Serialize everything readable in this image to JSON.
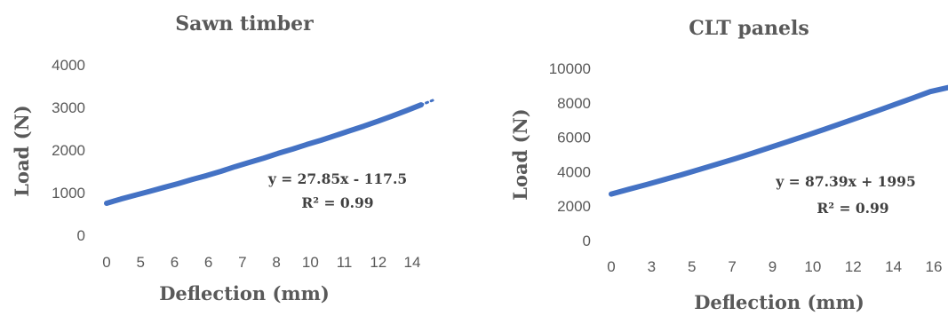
{
  "chart_data": [
    {
      "type": "line",
      "title": "Sawn timber",
      "xlabel": "Deflection (mm)",
      "ylabel": "Load (N)",
      "x_tick_labels": [
        "0",
        "5",
        "6",
        "6",
        "7",
        "8",
        "10",
        "11",
        "12",
        "14"
      ],
      "y_tick_labels": [
        "0",
        "1000",
        "2000",
        "3000",
        "4000"
      ],
      "ylim": [
        0,
        4000
      ],
      "series": [
        {
          "values": [
            750,
            850,
            940,
            1030,
            1120,
            1210,
            1310,
            1400,
            1500,
            1610,
            1710,
            1810,
            1920,
            2020,
            2130,
            2230,
            2340,
            2450,
            2560,
            2680,
            2800,
            2930,
            3060
          ]
        }
      ],
      "trendline": {
        "type": "linear",
        "extends_beyond_data": true,
        "end_value": 3190
      },
      "annotations": [
        "y = 27.85x - 117.5",
        "R² = 0.99"
      ],
      "colors": {
        "series": "#4472C4"
      }
    },
    {
      "type": "line",
      "title": "CLT panels",
      "xlabel": "Deflection (mm)",
      "ylabel": "Load (N)",
      "x_tick_labels": [
        "0",
        "3",
        "5",
        "7",
        "9",
        "10",
        "12",
        "14",
        "16"
      ],
      "y_tick_labels": [
        "0",
        "2000",
        "4000",
        "6000",
        "8000",
        "10000"
      ],
      "ylim": [
        0,
        10000
      ],
      "series": [
        {
          "values": [
            2700,
            2980,
            3250,
            3540,
            3830,
            4140,
            4450,
            4760,
            5080,
            5420,
            5760,
            6100,
            6450,
            6810,
            7170,
            7530,
            7900,
            8270,
            8650,
            8880
          ]
        }
      ],
      "annotations": [
        "y = 87.39x + 1995",
        "R² = 0.99"
      ],
      "colors": {
        "series": "#4472C4"
      }
    }
  ]
}
